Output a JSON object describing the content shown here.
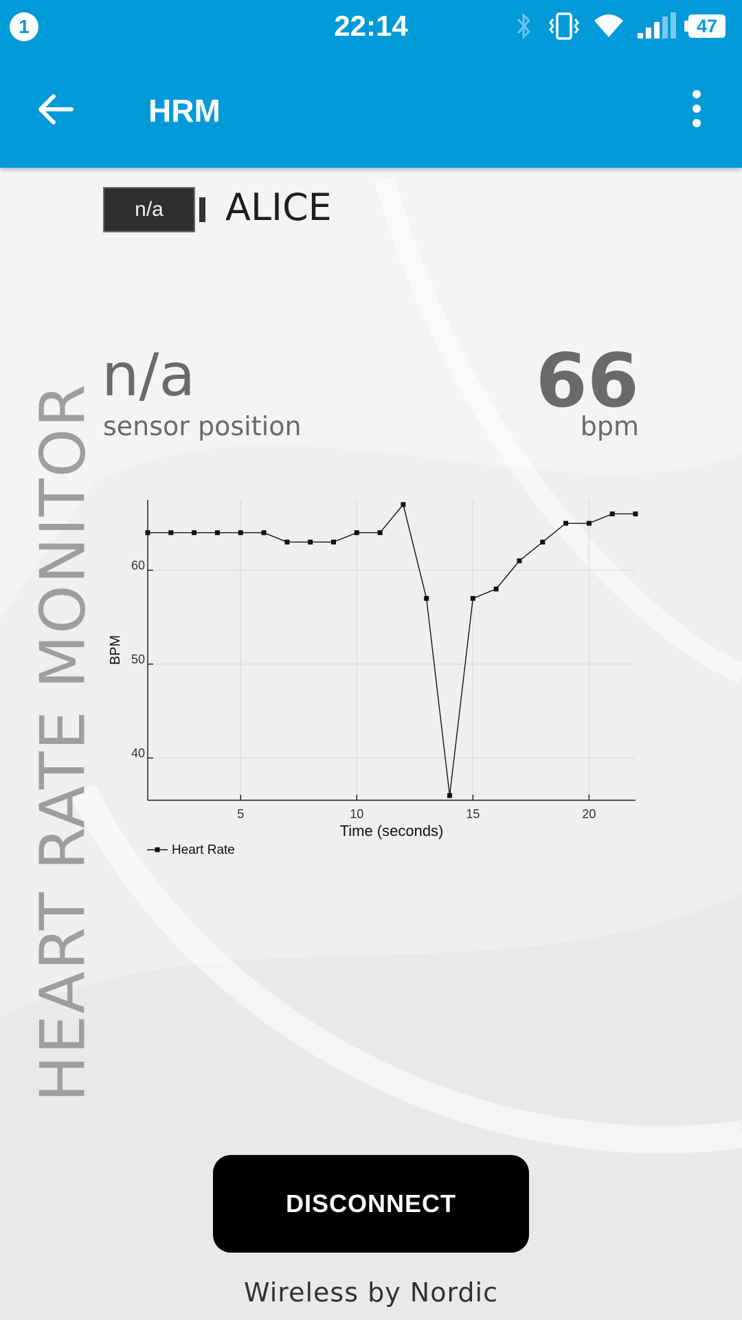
{
  "status_bar": {
    "notification_count": "1",
    "time": "22:14",
    "battery_level": "47",
    "icons": [
      "bluetooth-icon",
      "vibrate-icon",
      "wifi-icon",
      "signal-icon",
      "battery-icon"
    ]
  },
  "app_bar": {
    "title": "HRM",
    "back_icon": "arrow-left-icon",
    "menu_icon": "more-vert-icon",
    "color": "#019ad9"
  },
  "device": {
    "battery": "n/a",
    "name": "ALICE"
  },
  "side_label": "HEART RATE MONITOR",
  "metrics": {
    "sensor_position_value": "n/a",
    "sensor_position_label": "sensor position",
    "heart_rate_value": "66",
    "heart_rate_unit": "bpm"
  },
  "chart_data": {
    "type": "line",
    "xlabel": "Time (seconds)",
    "ylabel": "BPM",
    "xlim": [
      1,
      22
    ],
    "ylim": [
      35.5,
      67.5
    ],
    "xticks": [
      5,
      10,
      15,
      20
    ],
    "yticks": [
      40,
      50,
      60
    ],
    "grid": true,
    "legend": "bottom-left",
    "series": [
      {
        "name": "Heart Rate",
        "x": [
          1,
          2,
          3,
          4,
          5,
          6,
          7,
          8,
          9,
          10,
          11,
          12,
          13,
          14,
          15,
          16,
          17,
          18,
          19,
          20,
          21,
          22
        ],
        "values": [
          64,
          64,
          64,
          64,
          64,
          64,
          63,
          63,
          63,
          64,
          64,
          67,
          57,
          36,
          57,
          58,
          61,
          63,
          65,
          65,
          66,
          66
        ]
      }
    ]
  },
  "actions": {
    "disconnect_label": "DISCONNECT"
  },
  "footer": "Wireless by Nordic"
}
